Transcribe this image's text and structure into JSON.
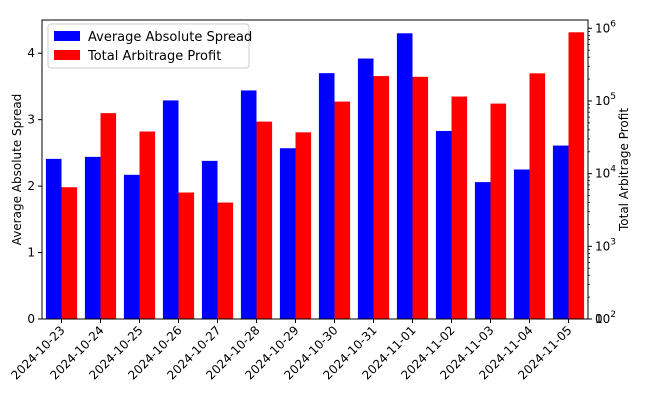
{
  "chart_data": {
    "type": "bar",
    "categories": [
      "2024-10-23",
      "2024-10-24",
      "2024-10-25",
      "2024-10-26",
      "2024-10-27",
      "2024-10-28",
      "2024-10-29",
      "2024-10-30",
      "2024-10-31",
      "2024-11-01",
      "2024-11-02",
      "2024-11-03",
      "2024-11-04",
      "2024-11-05"
    ],
    "series": [
      {
        "name": "Average Absolute Spread",
        "axis": "left",
        "color": "#0000ff",
        "values": [
          2.41,
          2.44,
          2.17,
          3.29,
          2.38,
          3.44,
          2.57,
          3.7,
          3.92,
          4.3,
          2.83,
          2.06,
          2.25,
          2.61
        ]
      },
      {
        "name": "Total Arbitrage Profit",
        "axis": "right",
        "color": "#ff0000",
        "values": [
          6500,
          68000,
          38000,
          5500,
          4000,
          52000,
          37000,
          98000,
          220000,
          215000,
          115000,
          92000,
          240000,
          880000
        ]
      }
    ],
    "ylabel": "Average Absolute Spread",
    "y2label": "Total Arbitrage Profit",
    "ylim": [
      0,
      4.5
    ],
    "yticks": [
      "0",
      "1",
      "2",
      "3",
      "4"
    ],
    "y2scale": "log",
    "y2lim": [
      100,
      1300000
    ],
    "y2ticks": [
      {
        "value": 100,
        "base": "10",
        "exp": "2"
      },
      {
        "value": 1000,
        "base": "10",
        "exp": "3"
      },
      {
        "value": 10000,
        "base": "10",
        "exp": "4"
      },
      {
        "value": 100000,
        "base": "10",
        "exp": "5"
      },
      {
        "value": 1000000,
        "base": "10",
        "exp": "6"
      }
    ],
    "y2zero_label": "0",
    "legend": "top-left",
    "grid": false
  }
}
